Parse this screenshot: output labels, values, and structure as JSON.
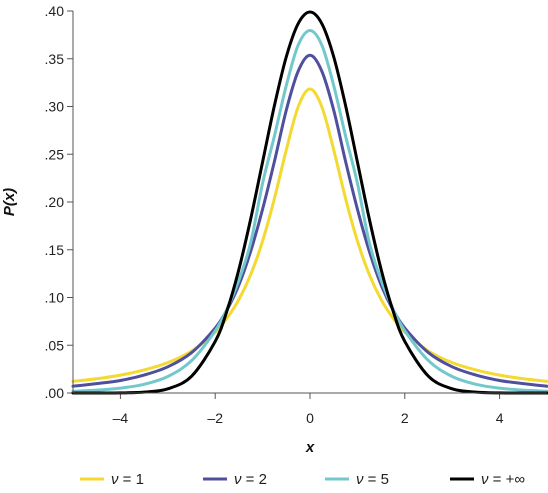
{
  "chart_data": {
    "type": "line",
    "title": "",
    "xlabel": "x",
    "ylabel": "P(x)",
    "xlim": [
      -5,
      5
    ],
    "ylim": [
      0,
      0.4
    ],
    "x_ticks": [
      -4,
      -2,
      0,
      2,
      4
    ],
    "x_tick_labels": [
      "–4",
      "–2",
      "0",
      "2",
      "4"
    ],
    "y_ticks": [
      0,
      0.05,
      0.1,
      0.15,
      0.2,
      0.25,
      0.3,
      0.35,
      0.4
    ],
    "y_tick_labels": [
      ".00",
      ".05",
      ".10",
      ".15",
      ".20",
      ".25",
      ".30",
      ".35",
      ".40"
    ],
    "grid": false,
    "legend_position": "bottom",
    "x": [
      -5,
      -4.5,
      -4,
      -3.5,
      -3,
      -2.5,
      -2,
      -1.75,
      -1.5,
      -1.25,
      -1,
      -0.75,
      -0.5,
      -0.25,
      0,
      0.25,
      0.5,
      0.75,
      1,
      1.25,
      1.5,
      1.75,
      2,
      2.5,
      3,
      3.5,
      4,
      4.5,
      5
    ],
    "series": [
      {
        "name": "ν = 1",
        "nu_symbol": "ν",
        "value_label": " = 1",
        "color": "#f4d931",
        "values": [
          0.0122,
          0.0149,
          0.0187,
          0.0241,
          0.0318,
          0.0439,
          0.0637,
          0.0785,
          0.0979,
          0.1241,
          0.1592,
          0.2037,
          0.2546,
          0.2996,
          0.3183,
          0.2996,
          0.2546,
          0.2037,
          0.1592,
          0.1241,
          0.0979,
          0.0785,
          0.0637,
          0.0439,
          0.0318,
          0.0241,
          0.0187,
          0.0149,
          0.0122
        ]
      },
      {
        "name": "ν = 2",
        "nu_symbol": "ν",
        "value_label": " = 2",
        "color": "#4f4f9e",
        "values": [
          0.0071,
          0.0098,
          0.0131,
          0.0188,
          0.0274,
          0.0422,
          0.068,
          0.0872,
          0.1132,
          0.1486,
          0.1925,
          0.2426,
          0.2962,
          0.3369,
          0.3536,
          0.3369,
          0.2962,
          0.2426,
          0.1925,
          0.1486,
          0.1132,
          0.0872,
          0.068,
          0.0422,
          0.0274,
          0.0188,
          0.0131,
          0.0098,
          0.0071
        ]
      },
      {
        "name": "ν = 5",
        "nu_symbol": "ν",
        "value_label": " = 5",
        "color": "#72c8cc",
        "values": [
          0.0018,
          0.003,
          0.0051,
          0.0091,
          0.0173,
          0.0338,
          0.0651,
          0.0881,
          0.1183,
          0.1577,
          0.2197,
          0.2692,
          0.322,
          0.3642,
          0.3796,
          0.3642,
          0.322,
          0.2692,
          0.2197,
          0.1577,
          0.1183,
          0.0881,
          0.0651,
          0.0338,
          0.0173,
          0.0091,
          0.0051,
          0.003,
          0.0018
        ]
      },
      {
        "name": "ν = +∞",
        "nu_symbol": "ν",
        "value_label": " = +∞",
        "color": "#000000",
        "values": [
          0.0,
          0.0,
          0.0001,
          0.0009,
          0.0044,
          0.0175,
          0.054,
          0.0863,
          0.1295,
          0.1826,
          0.242,
          0.3011,
          0.3521,
          0.3867,
          0.3989,
          0.3867,
          0.3521,
          0.3011,
          0.242,
          0.1826,
          0.1295,
          0.0863,
          0.054,
          0.0175,
          0.0044,
          0.0009,
          0.0001,
          0.0,
          0.0
        ]
      }
    ]
  }
}
